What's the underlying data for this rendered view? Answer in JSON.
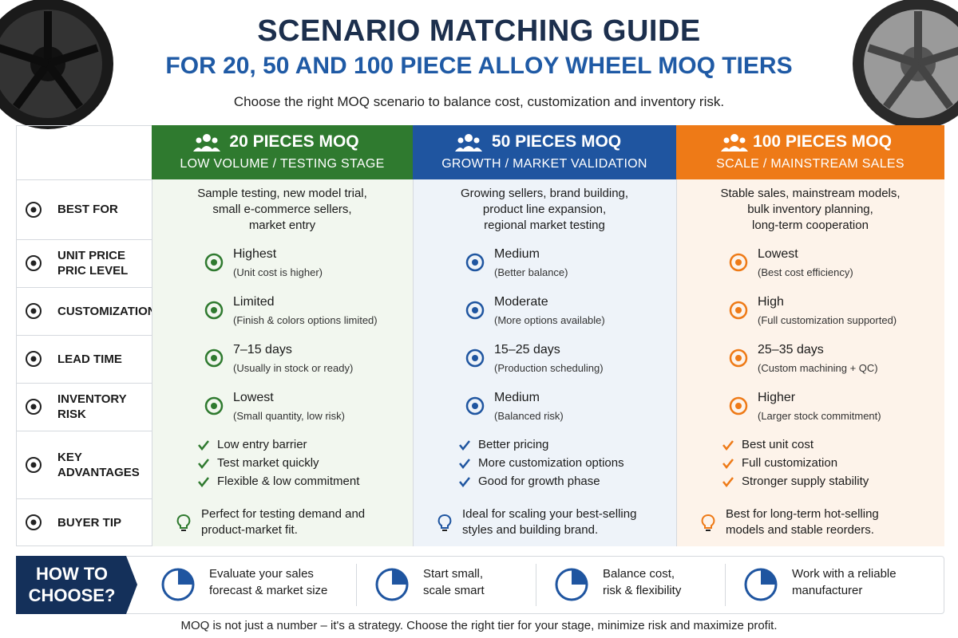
{
  "header": {
    "title": "SCENARIO MATCHING GUIDE",
    "subtitle": "FOR 20, 50 AND 100 PIECE ALLOY WHEEL MOQ TIERS",
    "intro": "Choose the right MOQ scenario to balance cost, customization and inventory risk."
  },
  "columns": [
    {
      "title": "20 PIECES MOQ",
      "subtitle": "LOW VOLUME / TESTING STAGE",
      "color": "#2f7a2f",
      "tint": "#f2f7ef"
    },
    {
      "title": "50 PIECES MOQ",
      "subtitle": "GROWTH / MARKET VALIDATION",
      "color": "#1f55a0",
      "tint": "#eef3f9"
    },
    {
      "title": "100 PIECES MOQ",
      "subtitle": "SCALE / MAINSTREAM SALES",
      "color": "#ee7a17",
      "tint": "#fdf3ea"
    }
  ],
  "rows": [
    {
      "label": [
        "BEST FOR"
      ],
      "cells": [
        {
          "lines": [
            "Sample testing, new model trial,",
            "small e-commerce sellers,",
            "market entry"
          ]
        },
        {
          "lines": [
            "Growing sellers, brand building,",
            "product line expansion,",
            "regional market testing"
          ]
        },
        {
          "lines": [
            "Stable sales, mainstream models,",
            "bulk inventory planning,",
            "long-term cooperation"
          ]
        }
      ]
    },
    {
      "label": [
        "UNIT PRICE",
        "PRIC LEVEL"
      ],
      "cells": [
        {
          "main": "Highest",
          "sub": "(Unit cost is higher)"
        },
        {
          "main": "Medium",
          "sub": "(Better balance)"
        },
        {
          "main": "Lowest",
          "sub": "(Best cost efficiency)"
        }
      ]
    },
    {
      "label": [
        "CUSTOMIZATION"
      ],
      "cells": [
        {
          "main": "Limited",
          "sub": "(Finish & colors options limited)"
        },
        {
          "main": "Moderate",
          "sub": "(More options available)"
        },
        {
          "main": "High",
          "sub": "(Full customization supported)"
        }
      ]
    },
    {
      "label": [
        "LEAD TIME"
      ],
      "cells": [
        {
          "main": "7–15 days",
          "sub": "(Usually in stock or ready)"
        },
        {
          "main": "15–25 days",
          "sub": "(Production scheduling)"
        },
        {
          "main": "25–35 days",
          "sub": "(Custom machining + QC)"
        }
      ]
    },
    {
      "label": [
        "INVENTORY",
        "RISK"
      ],
      "cells": [
        {
          "main": "Lowest",
          "sub": "(Small quantity, low risk)"
        },
        {
          "main": "Medium",
          "sub": "(Balanced risk)"
        },
        {
          "main": "Higher",
          "sub": "(Larger stock commitment)"
        }
      ]
    },
    {
      "label": [
        "KEY",
        "ADVANTAGES"
      ],
      "cells": [
        {
          "items": [
            "Low entry barrier",
            "Test market quickly",
            "Flexible & low commitment"
          ]
        },
        {
          "items": [
            "Better pricing",
            "More customization options",
            "Good for growth phase"
          ]
        },
        {
          "items": [
            "Best unit cost",
            "Full customization",
            "Stronger supply stability"
          ]
        }
      ]
    },
    {
      "label": [
        "BUYER TIP"
      ],
      "cells": [
        {
          "tip": [
            "Perfect for testing demand and",
            "product-market fit."
          ]
        },
        {
          "tip": [
            "Ideal for scaling your best-selling",
            "styles and building brand."
          ]
        },
        {
          "tip": [
            "Best for long-term hot-selling",
            "models and stable reorders."
          ]
        }
      ]
    }
  ],
  "how_to": {
    "title": [
      "HOW TO",
      "CHOOSE?"
    ],
    "steps": [
      [
        "Evaluate your sales",
        "forecast & market size"
      ],
      [
        "Start small,",
        "scale smart"
      ],
      [
        "Balance cost,",
        "risk & flexibility"
      ],
      [
        "Work with a reliable",
        "manufacturer"
      ]
    ]
  },
  "footnote": "MOQ is not just a number – it's a strategy. Choose the right tier for your stage, minimize risk and maximize profit."
}
